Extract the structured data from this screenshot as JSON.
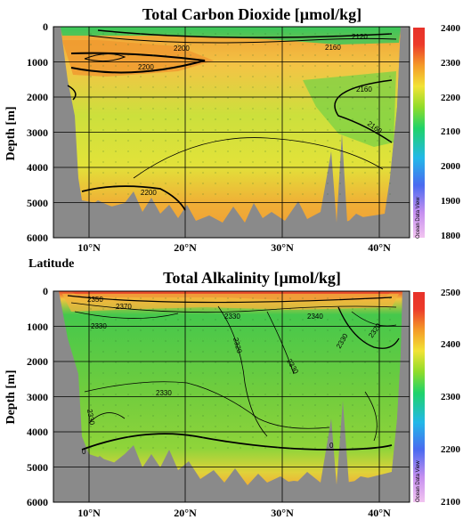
{
  "chart_data": [
    {
      "type": "heatmap",
      "title": "Total Carbon Dioxide [µmol/kg]",
      "ylabel": "Depth [m]",
      "xlabel": "Latitude",
      "x_ticks": [
        "10°N",
        "20°N",
        "30°N",
        "40°N"
      ],
      "y_ticks": [
        "0",
        "1000",
        "2000",
        "3000",
        "4000",
        "5000",
        "6000"
      ],
      "xlim": [
        6,
        44
      ],
      "ylim": [
        6000,
        0
      ],
      "colorbar": {
        "min": 1800,
        "max": 2400,
        "ticks": [
          "2400",
          "2300",
          "2200",
          "2100",
          "2000",
          "1900",
          "1800"
        ]
      },
      "contour_labels": [
        "2200",
        "2200",
        "2160",
        "2160",
        "2120",
        "2160",
        "2200",
        "2160",
        "2120",
        "2200"
      ],
      "watermark": "Ocean Data View"
    },
    {
      "type": "heatmap",
      "title": "Total Alkalinity [µmol/kg]",
      "ylabel": "Depth [m]",
      "xlabel": "",
      "x_ticks": [
        "10°N",
        "20°N",
        "30°N",
        "40°N"
      ],
      "y_ticks": [
        "0",
        "1000",
        "2000",
        "3000",
        "4000",
        "5000",
        "6000"
      ],
      "xlim": [
        6,
        44
      ],
      "ylim": [
        6000,
        0
      ],
      "colorbar": {
        "min": 2100,
        "max": 2500,
        "ticks": [
          "2500",
          "2400",
          "2300",
          "2200",
          "2100"
        ]
      },
      "contour_labels": [
        "2330",
        "2350",
        "2370",
        "2340",
        "2330",
        "2320",
        "2330",
        "2330",
        "2330",
        "2330",
        "2320",
        "0",
        "0"
      ],
      "watermark": "Ocean Data View"
    }
  ]
}
